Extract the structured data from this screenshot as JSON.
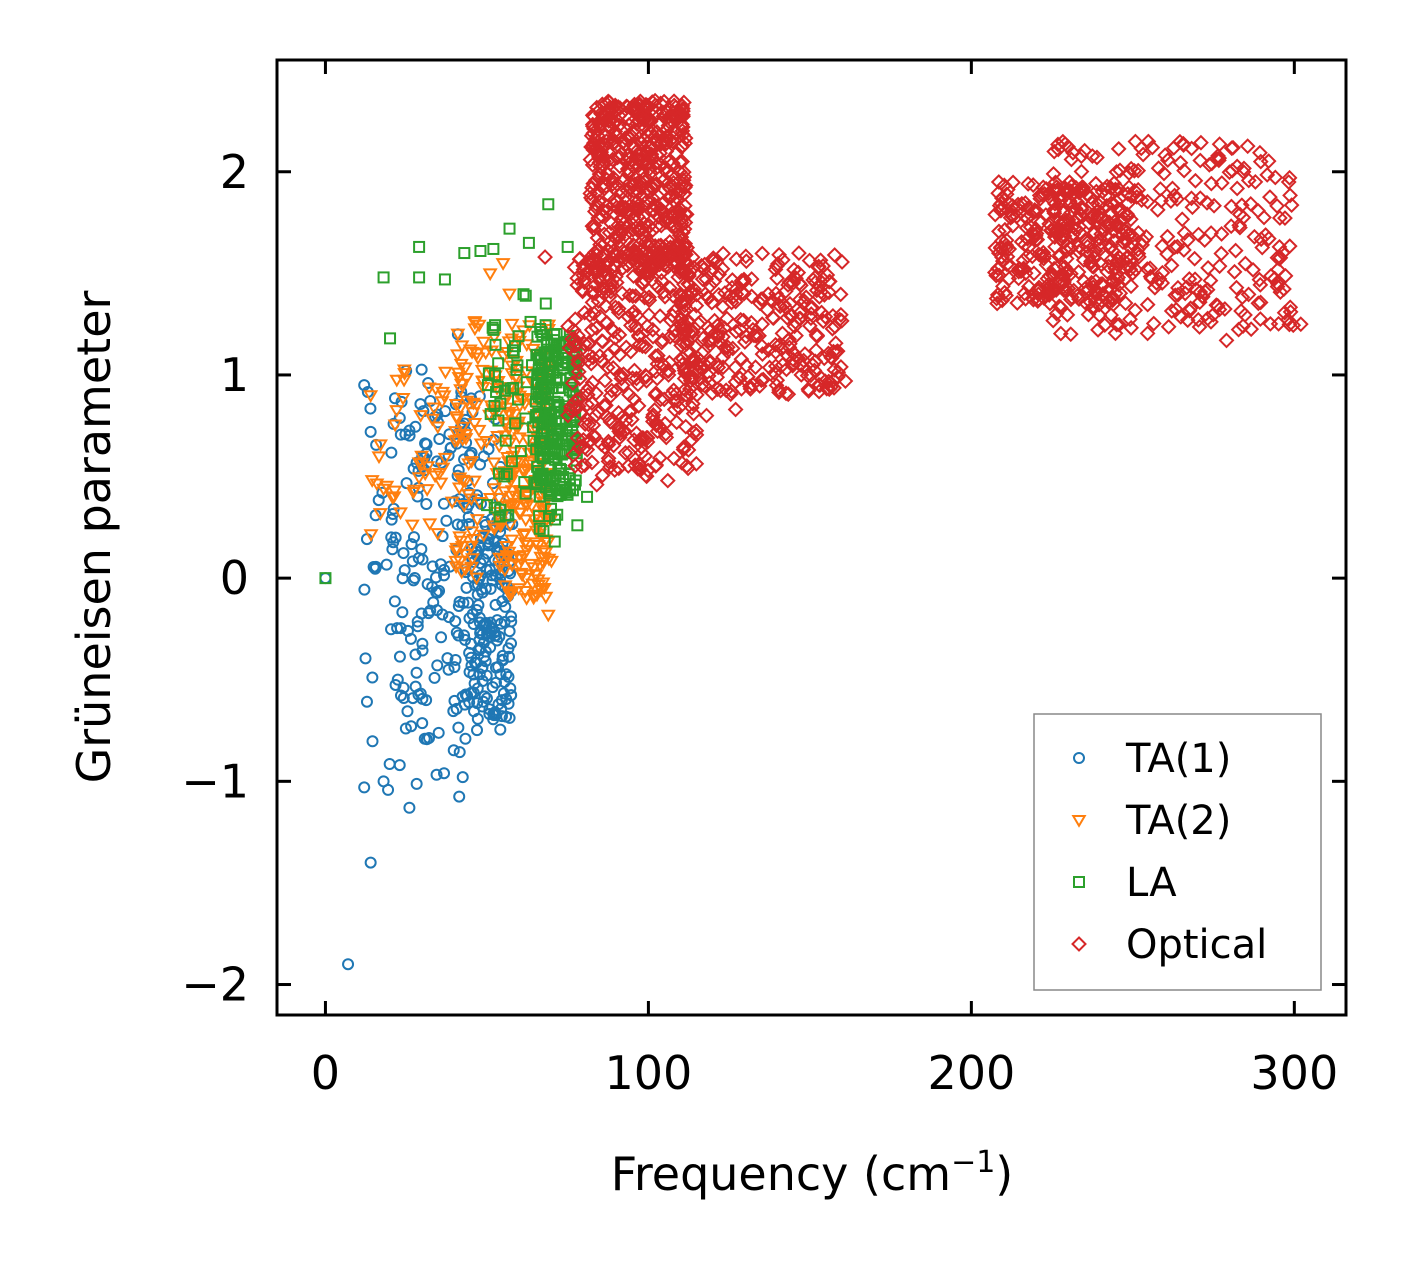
{
  "chart_data": {
    "type": "scatter",
    "title": "",
    "xlabel": "Frequency (cm",
    "xlabel_sup": "−1",
    "xlabel_suffix": ")",
    "ylabel": "Grüneisen parameter",
    "xlim": [
      -15,
      316
    ],
    "ylim": [
      -2.15,
      2.55
    ],
    "x_ticks": [
      0,
      100,
      200,
      300
    ],
    "x_tick_labels": [
      "0",
      "100",
      "200",
      "300"
    ],
    "y_ticks": [
      -2,
      -1,
      0,
      1,
      2
    ],
    "y_tick_labels": [
      "−2",
      "−1",
      "0",
      "1",
      "2"
    ],
    "grid": false,
    "legend_position": "lower-right",
    "series": [
      {
        "name": "TA(1)",
        "marker": "circle",
        "color": "#1f77b4",
        "regions": [
          {
            "x": [
              20,
              55
            ],
            "y": [
              -0.8,
              0.9
            ],
            "n": 170
          },
          {
            "x": [
              45,
              58
            ],
            "y": [
              -0.7,
              0.3
            ],
            "n": 140
          },
          {
            "x": [
              12,
              45
            ],
            "y": [
              -1.1,
              1.1
            ],
            "n": 70
          }
        ],
        "extra_points": [
          [
            0,
            0
          ],
          [
            7,
            -1.9
          ],
          [
            14,
            -1.4
          ],
          [
            12,
            -1.03
          ],
          [
            26,
            -1.13
          ],
          [
            18,
            -1.0
          ],
          [
            23,
            -0.92
          ],
          [
            12,
            0.95
          ],
          [
            14,
            0.72
          ],
          [
            25,
            1.02
          ],
          [
            41,
            1.2
          ]
        ]
      },
      {
        "name": "TA(2)",
        "marker": "triangle-down",
        "color": "#ff7f0e",
        "regions": [
          {
            "x": [
              40,
              70
            ],
            "y": [
              0.0,
              1.3
            ],
            "n": 200
          },
          {
            "x": [
              55,
              70
            ],
            "y": [
              -0.1,
              1.0
            ],
            "n": 120
          },
          {
            "x": [
              14,
              42
            ],
            "y": [
              0.2,
              1.1
            ],
            "n": 50
          }
        ],
        "extra_points": [
          [
            14,
            0.9
          ],
          [
            18,
            0.44
          ],
          [
            17,
            0.32
          ],
          [
            55,
            1.55
          ],
          [
            51,
            1.5
          ],
          [
            57,
            1.4
          ],
          [
            69,
            -0.18
          ]
        ]
      },
      {
        "name": "LA",
        "marker": "square",
        "color": "#2ca02c",
        "regions": [
          {
            "x": [
              65,
              78
            ],
            "y": [
              0.4,
              1.2
            ],
            "n": 220
          },
          {
            "x": [
              50,
              72
            ],
            "y": [
              0.2,
              1.4
            ],
            "n": 70
          }
        ],
        "extra_points": [
          [
            0,
            0
          ],
          [
            18,
            1.48
          ],
          [
            20,
            1.18
          ],
          [
            29,
            1.63
          ],
          [
            29,
            1.48
          ],
          [
            37,
            1.47
          ],
          [
            43,
            1.6
          ],
          [
            48,
            1.61
          ],
          [
            52,
            1.62
          ],
          [
            57,
            1.72
          ],
          [
            63,
            1.65
          ],
          [
            69,
            1.84
          ],
          [
            75,
            1.63
          ],
          [
            78,
            0.26
          ],
          [
            81,
            0.4
          ],
          [
            71,
            0.18
          ]
        ]
      },
      {
        "name": "Optical",
        "marker": "diamond",
        "color": "#d62728",
        "regions": [
          {
            "x": [
              82,
              112
            ],
            "y": [
              1.5,
              2.35
            ],
            "n": 500
          },
          {
            "x": [
              75,
              115
            ],
            "y": [
              0.5,
              1.6
            ],
            "n": 350
          },
          {
            "x": [
              110,
              160
            ],
            "y": [
              0.9,
              1.6
            ],
            "n": 300
          },
          {
            "x": [
              207,
              250
            ],
            "y": [
              1.35,
              1.95
            ],
            "n": 300
          },
          {
            "x": [
              225,
              300
            ],
            "y": [
              1.2,
              2.15
            ],
            "n": 300
          }
        ],
        "extra_points": [
          [
            99,
            0.6
          ],
          [
            106,
            0.48
          ],
          [
            118,
            0.8
          ],
          [
            127,
            0.83
          ],
          [
            161,
            0.97
          ],
          [
            279,
            1.17
          ],
          [
            302,
            1.25
          ],
          [
            68,
            1.58
          ],
          [
            84,
            0.46
          ]
        ]
      }
    ]
  },
  "legend": {
    "items": [
      {
        "label": "TA(1)",
        "color": "#1f77b4",
        "marker": "circle"
      },
      {
        "label": "TA(2)",
        "color": "#ff7f0e",
        "marker": "triangle-down"
      },
      {
        "label": "LA",
        "color": "#2ca02c",
        "marker": "square"
      },
      {
        "label": "Optical",
        "color": "#d62728",
        "marker": "diamond"
      }
    ]
  }
}
